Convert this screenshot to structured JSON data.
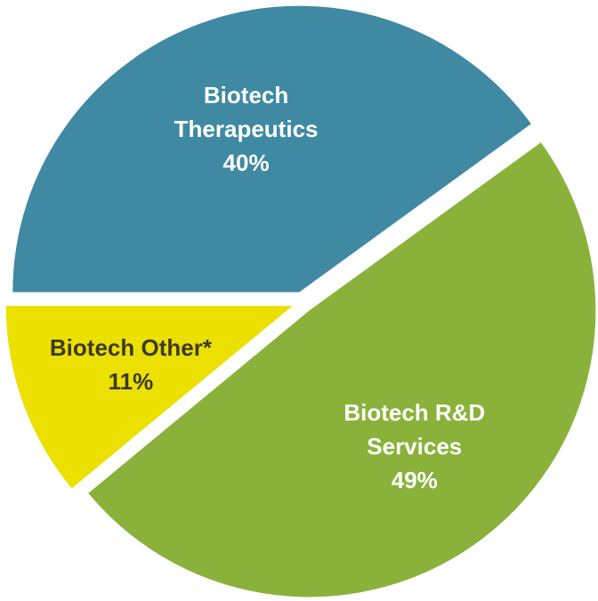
{
  "chart_data": {
    "type": "pie",
    "categories": [
      "Biotech Therapeutics",
      "Biotech R&D Services",
      "Biotech Other*"
    ],
    "values": [
      40,
      49,
      11
    ],
    "value_labels": [
      "40%",
      "49%",
      "11%"
    ],
    "colors": [
      "#3f89a3",
      "#8ab23b",
      "#ece000"
    ],
    "label_colors": [
      "#ffffff",
      "#ffffff",
      "#3b3a2c"
    ]
  }
}
